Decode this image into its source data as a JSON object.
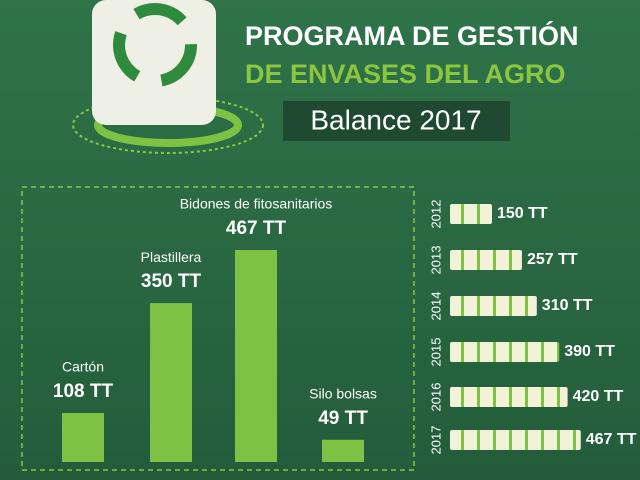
{
  "header": {
    "title_lines": [
      "PROGRAMA DE GESTIÓN",
      "DE ENVASES DEL AGRO"
    ],
    "subtitle": "Balance 2017"
  },
  "chart_data": [
    {
      "type": "bar",
      "categories": [
        "Cartón",
        "Plastillera",
        "Bidones de fitosanitarios",
        "Silo bolsas"
      ],
      "values": [
        108,
        350,
        467,
        49
      ],
      "value_labels": [
        "108 TT",
        "350 TT",
        "467 TT",
        "49 TT"
      ],
      "color": "#7dc242"
    },
    {
      "type": "pictogram",
      "categories": [
        "2012",
        "2013",
        "2014",
        "2015",
        "2016",
        "2017"
      ],
      "values": [
        150,
        257,
        310,
        390,
        420,
        467
      ],
      "value_labels": [
        "150 TT",
        "257 TT",
        "310 TT",
        "390 TT",
        "420 TT",
        "467 TT"
      ],
      "color": "#f1f2d8"
    }
  ]
}
